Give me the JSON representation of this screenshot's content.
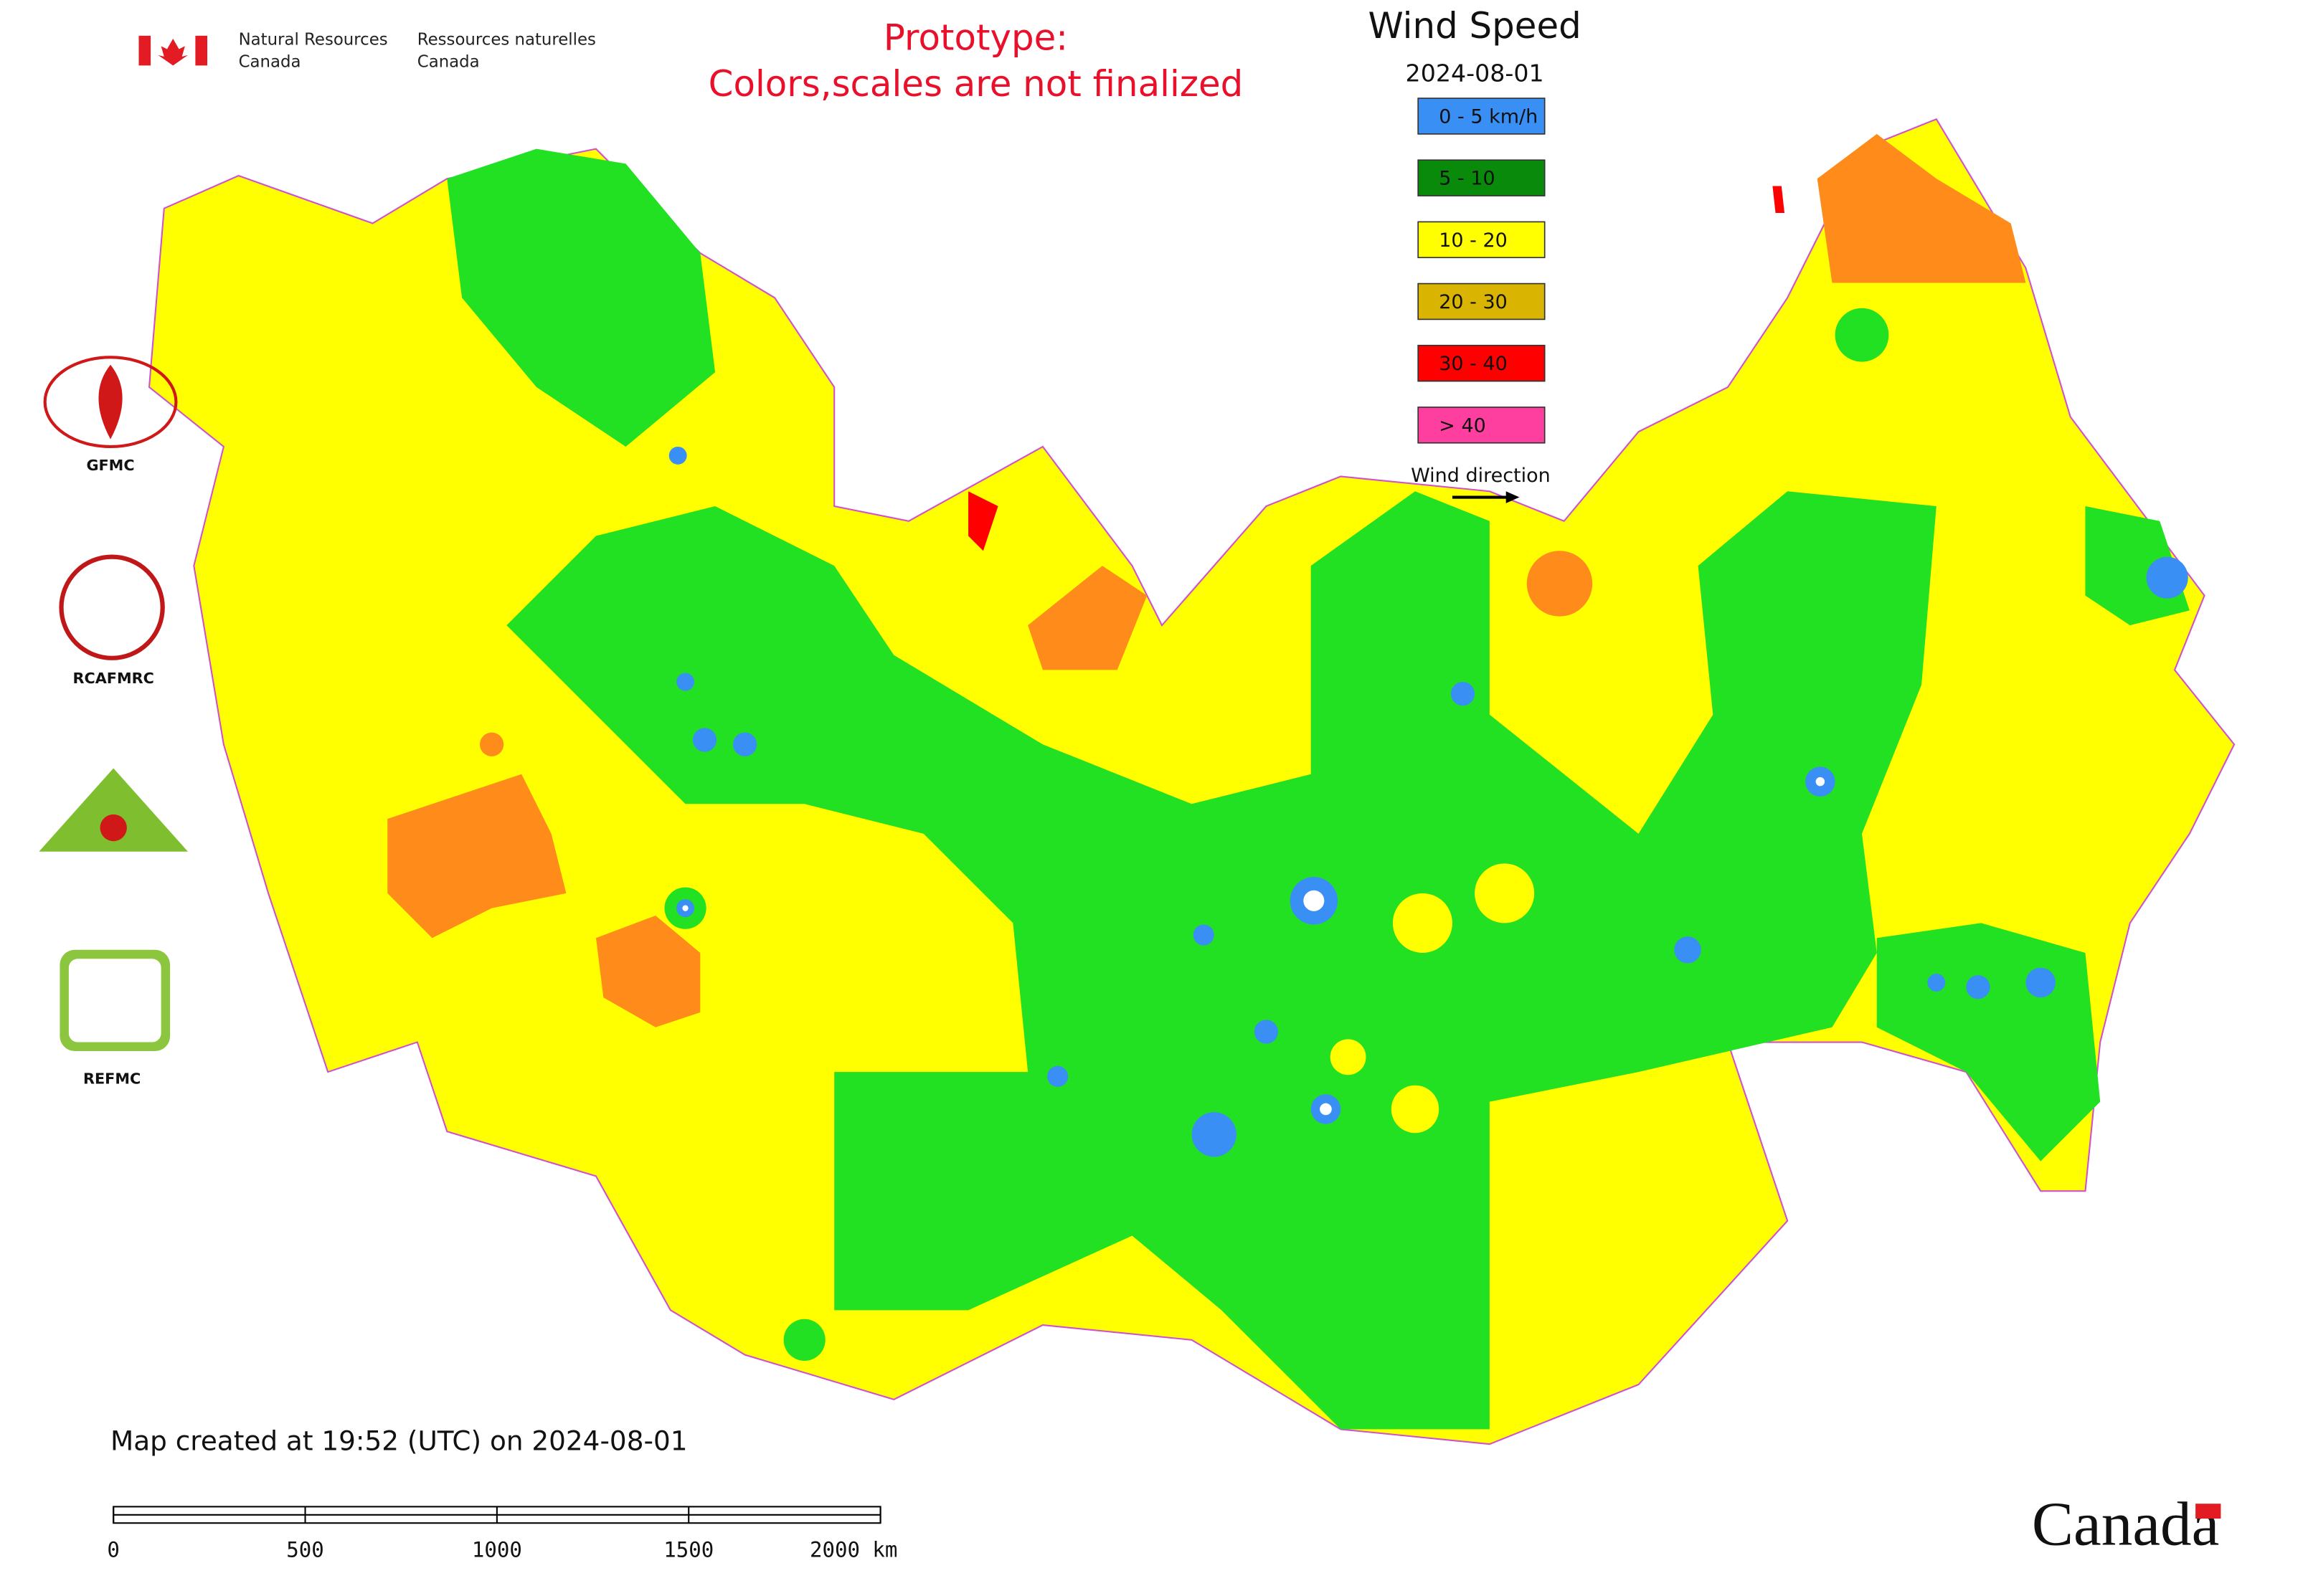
{
  "header": {
    "agency_en": "Natural Resources",
    "agency_en_2": "Canada",
    "agency_fr": "Ressources naturelles",
    "agency_fr_2": "Canada",
    "prototype_line_1": "Prototype:",
    "prototype_line_2": "Colors,scales are not finalized"
  },
  "legend": {
    "title": "Wind Speed",
    "date": "2024-08-01",
    "items": [
      {
        "label": "0 - 5 km/h",
        "color": "#3a8ff5"
      },
      {
        "label": "5 - 10",
        "color": "#0a8a0a"
      },
      {
        "label": "10 - 20",
        "color": "#ffff00"
      },
      {
        "label": "20 - 30",
        "color": "#d9b400"
      },
      {
        "label": "30 - 40",
        "color": "#ff0000"
      },
      {
        "label": "> 40",
        "color": "#ff3fa0"
      }
    ],
    "wind_direction": "Wind direction"
  },
  "logos": [
    "GFMC",
    "RCAFMRC",
    "REFMC"
  ],
  "footer": {
    "created": "Map created at 19:52 (UTC) on 2024-08-01",
    "scale_labels": [
      "0",
      "500",
      "1000",
      "1500",
      "2000 km"
    ],
    "wordmark": "Canada"
  }
}
